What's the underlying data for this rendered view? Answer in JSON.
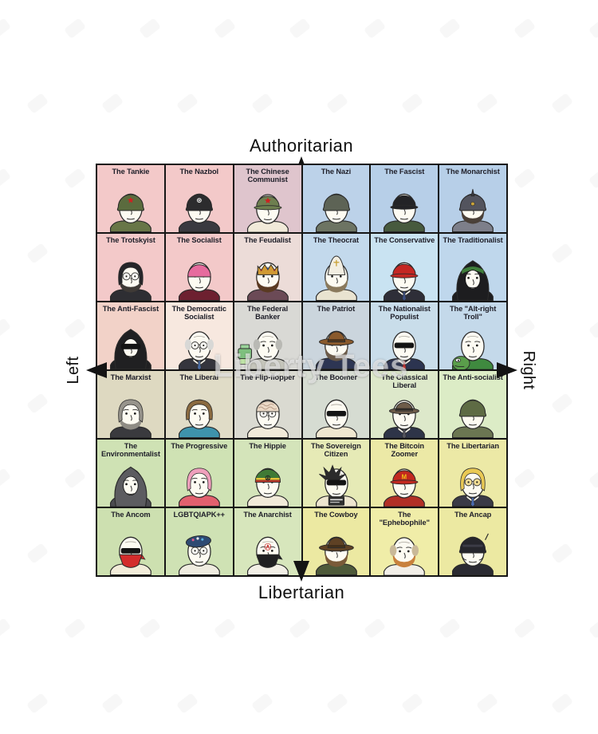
{
  "page": {
    "background": "#ffffff"
  },
  "watermark": {
    "text": "Liberty Tees"
  },
  "axes": {
    "top": "Authoritarian",
    "bottom": "Libertarian",
    "left": "Left",
    "right": "Right",
    "arrow_color": "#141414"
  },
  "quadrant_colors": {
    "auth_left": "#f3c9c9",
    "auth_right": "#b7cfe8",
    "lib_left": "#cfe2b4",
    "lib_right": "#ece9a2"
  },
  "grid": {
    "rows": 6,
    "cols": 6,
    "cells": [
      {
        "label": "The Tankie",
        "icon": "tankie-wojak-icon",
        "bg": "#f3c9c9",
        "look": {
          "hat": "helmet",
          "hatColor": "#5b6b3e",
          "eyes": "dots",
          "torso": "#687647",
          "mark": "star"
        }
      },
      {
        "label": "The Nazbol",
        "icon": "nazbol-wojak-icon",
        "bg": "#f3c9c9",
        "look": {
          "hat": "helmet",
          "hatColor": "#2c2c2e",
          "eyes": "dots",
          "torso": "#3a3a40",
          "mark": "circle"
        }
      },
      {
        "label": "The Chinese Communist",
        "icon": "chinese-communist-wojak-icon",
        "bg": "#dfc5cd",
        "look": {
          "hat": "cap",
          "hatColor": "#6e7f50",
          "eyes": "dots",
          "torso": "#f1ead9",
          "mark": "star"
        }
      },
      {
        "label": "The Nazi",
        "icon": "nazi-wojak-icon",
        "bg": "#bcd2e9",
        "look": {
          "hat": "helmet",
          "hatColor": "#5d6355",
          "eyes": "dots",
          "torso": "#6d7463"
        }
      },
      {
        "label": "The Fascist",
        "icon": "fascist-wojak-icon",
        "bg": "#b7cfe8",
        "look": {
          "hat": "cap",
          "hatColor": "#232326",
          "eyes": "dots",
          "torso": "#475a3e"
        }
      },
      {
        "label": "The Monarchist",
        "icon": "monarchist-wojak-icon",
        "bg": "#b7cfe8",
        "look": {
          "hat": "spiked",
          "hatColor": "#53545e",
          "eyes": "dots",
          "beard": "#4a4038",
          "torso": "#7d7f8a"
        }
      },
      {
        "label": "The Trotskyist",
        "icon": "trotskyist-wojak-icon",
        "bg": "#f3c9c9",
        "look": {
          "hat": "hair",
          "hatColor": "#26262a",
          "eyes": "glasses",
          "beard": "#3f3a36",
          "torso": "#2e2e33"
        }
      },
      {
        "label": "The Socialist",
        "icon": "socialist-wojak-icon",
        "bg": "#f3c9c9",
        "look": {
          "hat": "dome",
          "hatColor": "#e66b9e",
          "eyes": "dots",
          "torso": "#6d2030"
        }
      },
      {
        "label": "The Feudalist",
        "icon": "feudalist-wojak-icon",
        "bg": "#ecdcd8",
        "look": {
          "hat": "crown",
          "hatColor": "#d19a33",
          "eyes": "dots",
          "beard": "#5a3a22",
          "torso": "#6b4a56"
        }
      },
      {
        "label": "The Theocrat",
        "icon": "theocrat-wojak-icon",
        "bg": "#c3d9ec",
        "look": {
          "hat": "mitre",
          "hatColor": "#f2eee2",
          "eyes": "dots",
          "beard": "#8a795c",
          "torso": "#e9e3d0"
        }
      },
      {
        "label": "The Conservative",
        "icon": "conservative-wojak-icon",
        "bg": "#c9e3f2",
        "look": {
          "hat": "cap",
          "hatColor": "#c42724",
          "eyes": "dots",
          "torso": "#2e2e38",
          "tie": "#3c4e80"
        }
      },
      {
        "label": "The Traditionalist",
        "icon": "traditionalist-wojak-icon",
        "bg": "#bfd7ec",
        "look": {
          "hat": "hood",
          "hatColor": "#1d1d1f",
          "band": "#3f7d3a",
          "eyes": "dots",
          "torso": "#1d1d1f"
        }
      },
      {
        "label": "The Anti-Fascist",
        "icon": "anti-fascist-wojak-icon",
        "bg": "#f2d2c8",
        "look": {
          "hat": "hood",
          "hatColor": "#202022",
          "eyes": "shades",
          "torso": "#202022"
        }
      },
      {
        "label": "The Democratic Socialist",
        "icon": "democratic-socialist-wojak-icon",
        "bg": "#f7e8df",
        "look": {
          "hat": "hairSides",
          "hatColor": "#d8d8d6",
          "eyes": "glasses",
          "torso": "#35353d",
          "tie": "#4a6aa0"
        }
      },
      {
        "label": "The Federal Banker",
        "icon": "federal-banker-wojak-icon",
        "bg": "#d9d9d5",
        "look": {
          "hat": "hairSides",
          "hatColor": "#b9b9b4",
          "eyes": "dots",
          "torso": "#c6c6bc",
          "prop": "printer"
        }
      },
      {
        "label": "The Patriot",
        "icon": "patriot-wojak-icon",
        "bg": "#cbd5dd",
        "look": {
          "hat": "cowboy",
          "hatColor": "#8a5a2c",
          "eyes": "dots",
          "beard": "#6b5a48",
          "torso": "#2d3553"
        }
      },
      {
        "label": "The Nationalist Populist",
        "icon": "nationalist-populist-wojak-icon",
        "bg": "#c9ddea",
        "look": {
          "hat": "none",
          "eyes": "shades",
          "torso": "#2c3450",
          "tie": "#c43030"
        }
      },
      {
        "label": "The \"Alt-right Troll\"",
        "icon": "alt-right-troll-wojak-icon",
        "bg": "#c4d9ea",
        "look": {
          "hat": "none",
          "eyes": "dots",
          "torso": "#3f8a3f",
          "prop": "pepe"
        }
      },
      {
        "label": "The Marxist",
        "icon": "marxist-wojak-icon",
        "bg": "#ded9c1",
        "look": {
          "hat": "hair",
          "hatColor": "#97948c",
          "eyes": "dots",
          "beard": "#8f8c84",
          "torso": "#3a3a3e"
        }
      },
      {
        "label": "The Liberal",
        "icon": "liberal-wojak-icon",
        "bg": "#e0dcc7",
        "look": {
          "hat": "bob",
          "hatColor": "#8a6a40",
          "eyes": "dots",
          "torso": "#3e93ac"
        }
      },
      {
        "label": "The Flip-flopper",
        "icon": "flip-flopper-wojak-icon",
        "bg": "#dadad1",
        "look": {
          "hat": "brain",
          "hatColor": "#ead9c6",
          "eyes": "glasses",
          "torso": "#f1ead9"
        }
      },
      {
        "label": "The Boomer",
        "icon": "boomer-wojak-icon",
        "bg": "#d6dcd2",
        "look": {
          "hat": "none",
          "eyes": "shades",
          "torso": "#efe7d0"
        }
      },
      {
        "label": "The Classical Liberal",
        "icon": "classical-liberal-wojak-icon",
        "bg": "#dde8ca",
        "look": {
          "hat": "fedora",
          "hatColor": "#6e5c49",
          "eyes": "dots",
          "torso": "#2e3448",
          "tie": "#55555f"
        }
      },
      {
        "label": "The Anti-socialist",
        "icon": "anti-socialist-wojak-icon",
        "bg": "#dcecc6",
        "look": {
          "hat": "helmet",
          "hatColor": "#5e6b44",
          "eyes": "dots",
          "torso": "#6b7652"
        }
      },
      {
        "label": "The Environmentalist",
        "icon": "environmentalist-wojak-icon",
        "bg": "#cfe2b4",
        "look": {
          "hat": "hood",
          "hatColor": "#5c5c60",
          "eyes": "dots",
          "torso": "#4b4b50"
        }
      },
      {
        "label": "The Progressive",
        "icon": "progressive-wojak-icon",
        "bg": "#cfe2b4",
        "look": {
          "hat": "hair",
          "hatColor": "#efa0bc",
          "eyes": "dots",
          "torso": "#e2606e"
        }
      },
      {
        "label": "The Hippie",
        "icon": "hippie-wojak-icon",
        "bg": "#d4e4ba",
        "look": {
          "hat": "rasta",
          "hatColor": "#3f7a35",
          "band": "#e8c437",
          "eyes": "dots",
          "torso": "#f1ead9",
          "mark": "peace"
        }
      },
      {
        "label": "The Sovereign Citizen",
        "icon": "sovereign-citizen-wojak-icon",
        "bg": "#e6eab6",
        "look": {
          "hat": "spiky",
          "hatColor": "#2b2b2b",
          "eyes": "shades",
          "torso": "#eee6cf",
          "prop": "plate"
        }
      },
      {
        "label": "The Bitcoin Zoomer",
        "icon": "bitcoin-zoomer-wojak-icon",
        "bg": "#ece9a6",
        "look": {
          "hat": "cap",
          "hatColor": "#c2281f",
          "eyes": "dots",
          "torso": "#b23026",
          "mark": "m"
        }
      },
      {
        "label": "The Libertarian",
        "icon": "libertarian-wojak-icon",
        "bg": "#ece9a6",
        "look": {
          "hat": "hair",
          "hatColor": "#e9c954",
          "eyes": "yellowglasses",
          "torso": "#3a3a46",
          "tie": "#4a6ab0"
        }
      },
      {
        "label": "The Ancom",
        "icon": "ancom-wojak-icon",
        "bg": "#cde0b0",
        "look": {
          "hat": "bandana",
          "hatColor": "#d32c2c",
          "eyes": "shades",
          "torso": "#f2ecd9"
        }
      },
      {
        "label": "LGBTQIAPK++",
        "icon": "lgbtqiapk-wojak-icon",
        "bg": "#cfe2b4",
        "look": {
          "hat": "beret",
          "hatColor": "#2e4a72",
          "eyes": "glasses",
          "torso": "#efece0",
          "mark": "pins"
        }
      },
      {
        "label": "The Anarchist",
        "icon": "anarchist-wojak-icon",
        "bg": "#d7e6bc",
        "look": {
          "hat": "bandana",
          "hatColor": "#202022",
          "eyes": "dots",
          "torso": "#f2efe6",
          "mark": "anarchy"
        }
      },
      {
        "label": "The Cowboy",
        "icon": "cowboy-wojak-icon",
        "bg": "#ece9a2",
        "look": {
          "hat": "cowboy",
          "hatColor": "#5e4124",
          "eyes": "dots",
          "beard": "#7a5a38",
          "torso": "#4e5a3a"
        }
      },
      {
        "label": "The \"Ephebophile\"",
        "icon": "ephebophile-wojak-icon",
        "bg": "#f0eda8",
        "look": {
          "hat": "hairSides",
          "hatColor": "#c9b998",
          "eyes": "dots",
          "beard": "#c8803c",
          "torso": "#f2efe8"
        }
      },
      {
        "label": "The Ancap",
        "icon": "ancap-wojak-icon",
        "bg": "#ece9a2",
        "look": {
          "hat": "tactical",
          "hatColor": "#26262c",
          "eyes": "dots",
          "torso": "#2b2b32"
        }
      }
    ]
  }
}
